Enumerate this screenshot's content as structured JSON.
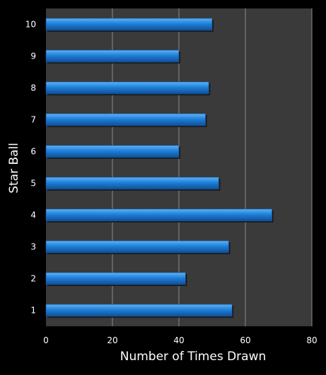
{
  "chart_data": {
    "type": "bar",
    "orientation": "horizontal",
    "title": "",
    "xlabel": "Number of Times Drawn",
    "ylabel": "Star Ball",
    "categories": [
      "1",
      "2",
      "3",
      "4",
      "5",
      "6",
      "7",
      "8",
      "9",
      "10"
    ],
    "values": [
      56,
      42,
      55,
      68,
      52,
      40,
      48,
      49,
      40,
      50
    ],
    "xlim": [
      0,
      80
    ],
    "xticks": [
      "0",
      "20",
      "40",
      "60",
      "80"
    ],
    "grid": "vertical",
    "legend": "none",
    "colors": {
      "background": "#000000",
      "plot_area": "#3a3a3a",
      "bar": "#1f7fd8",
      "bar_highlight": "#5db2f5",
      "bar_shadow": "#0f4f96",
      "gridline": "#8a8a8a",
      "text": "#ffffff"
    }
  }
}
